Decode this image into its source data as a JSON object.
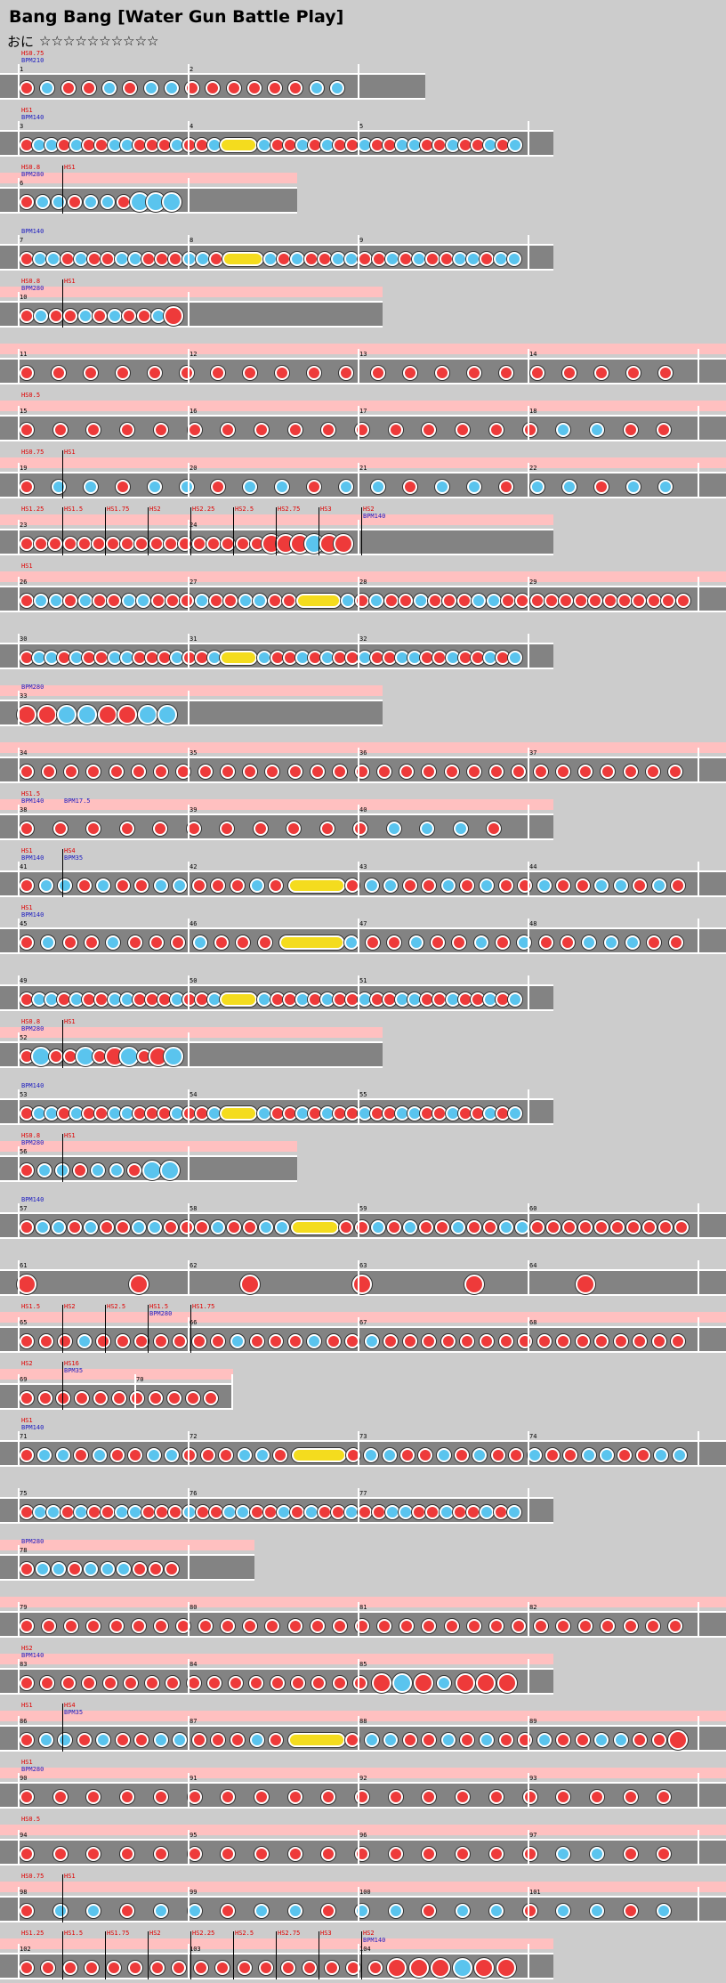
{
  "header": {
    "title": "Bang Bang [Water Gun Battle Play]",
    "difficulty_mark": "おに",
    "stars": "☆☆☆☆☆☆☆☆☆☆"
  },
  "colors": {
    "don": "#ee3a3a",
    "ka": "#5ac4ee",
    "drumroll": "#f4dc1e",
    "gogo": "#ffc0c0",
    "lane": "#838383",
    "hs_text": "#e00000",
    "bpm_text": "#2020c0"
  },
  "rows": [
    {
      "measures": [
        "1",
        "2"
      ],
      "events": [
        "HS0.75",
        "BPM210"
      ],
      "gogo": false,
      "notes": "d k d d k d k k d d d d d d k k",
      "roll": false
    },
    {
      "measures": [
        "3",
        "4",
        "5"
      ],
      "events": [
        "HS1",
        "BPM140"
      ],
      "gogo": false,
      "notes": "d k k d k d d k k d d d k d d k k d d k d k d d k d d k k d d k d d k d k",
      "roll": true
    },
    {
      "measures": [
        "6"
      ],
      "events": [
        "HS0.8",
        "BPM280",
        "HS1"
      ],
      "gogo": true,
      "notes": "d k k d k k d K K K",
      "roll": false
    },
    {
      "measures": [
        "7",
        "8",
        "9"
      ],
      "events": [
        "BPM140"
      ],
      "gogo": false,
      "notes": "d k k d k d d k k d d d k k d k d k d d k k d d k d k d d k k d k k",
      "roll": true
    },
    {
      "measures": [
        "10"
      ],
      "events": [
        "HS0.8",
        "BPM280",
        "HS1"
      ],
      "gogo": true,
      "notes": "d k d d k d k d d k D",
      "roll": false
    },
    {
      "measures": [
        "11",
        "12",
        "13",
        "14"
      ],
      "events": [],
      "gogo": true,
      "notes": "d d d d d d d d d d d d d d d d d d d d d",
      "roll": false
    },
    {
      "measures": [
        "15",
        "16",
        "17",
        "18"
      ],
      "events": [
        "HS0.5"
      ],
      "gogo": true,
      "notes": "d d d d d d d d d d d d d d d d k k d d",
      "roll": false
    },
    {
      "measures": [
        "19",
        "20",
        "21",
        "22"
      ],
      "events": [
        "HS0.75",
        "HS1"
      ],
      "gogo": true,
      "notes": "d k k d k k d k k d k k d k k d k k d k k",
      "roll": false
    },
    {
      "measures": [
        "23",
        "24"
      ],
      "events": [
        "HS1.25",
        "HS1.5",
        "HS1.75",
        "HS2",
        "HS2.25",
        "HS2.5",
        "HS2.75",
        "HS3",
        "HS2",
        "BPM140"
      ],
      "gogo": true,
      "notes": "d d d d d d d d d d d d d d d d d D D D K D D",
      "roll": false
    },
    {
      "measures": [
        "26",
        "27",
        "28",
        "29"
      ],
      "events": [
        "HS1"
      ],
      "gogo": true,
      "notes": "d k k d k d d k k d d d k d d k k d d k d k d d k d d d k k d d d d d d d d d d d d d",
      "roll": true
    },
    {
      "measures": [
        "30",
        "31",
        "32"
      ],
      "events": [],
      "gogo": false,
      "notes": "d k k d k d d k k d d d k d d k k d d k d k d d k d d k k d d k d d k d k",
      "roll": true
    },
    {
      "measures": [
        "33"
      ],
      "events": [
        "BPM280"
      ],
      "gogo": true,
      "notes": "D D K K D D K K",
      "roll": false
    },
    {
      "measures": [
        "34",
        "35",
        "36",
        "37"
      ],
      "events": [],
      "gogo": true,
      "notes": "d d d d d d d d d d d d d d d d d d d d d d d d d d d d d d",
      "roll": false
    },
    {
      "measures": [
        "38",
        "39",
        "40"
      ],
      "events": [
        "HS1.5",
        "BPM140",
        "BPM17.5"
      ],
      "gogo": true,
      "notes": "d d d d d d d d d d d k k k d",
      "roll": false
    },
    {
      "measures": [
        "41",
        "42",
        "43",
        "44"
      ],
      "events": [
        "HS1",
        "BPM140",
        "HS4",
        "BPM35"
      ],
      "gogo": false,
      "notes": "d k k d k d d k k d d d k d d k k d d k d k d d k d d k k d k d",
      "roll": true
    },
    {
      "measures": [
        "45",
        "46",
        "47",
        "48"
      ],
      "events": [
        "HS1",
        "BPM140"
      ],
      "gogo": false,
      "notes": "d k d d k d d d k d d d k d d k d d k d k d d k k k d d",
      "roll": true
    },
    {
      "measures": [
        "49",
        "50",
        "51"
      ],
      "events": [],
      "gogo": false,
      "notes": "d k k d k d d k k d d d k d d k k d d k d k d d k d d k k d d k d d k d k",
      "roll": true
    },
    {
      "measures": [
        "52"
      ],
      "events": [
        "HS0.8",
        "BPM280",
        "HS1"
      ],
      "gogo": true,
      "notes": "d K d d K d D K d D K",
      "roll": false
    },
    {
      "measures": [
        "53",
        "54",
        "55"
      ],
      "events": [
        "BPM140"
      ],
      "gogo": false,
      "notes": "d k k d k d d k k d d d k d d k k d d k d k d d k d d k k d d k d d k d k",
      "roll": true
    },
    {
      "measures": [
        "56"
      ],
      "events": [
        "HS0.8",
        "BPM280",
        "HS1"
      ],
      "gogo": true,
      "notes": "d k k d k k d K K",
      "roll": false
    },
    {
      "measures": [
        "57",
        "58",
        "59",
        "60"
      ],
      "events": [
        "BPM140"
      ],
      "gogo": false,
      "notes": "d k k d k d d k k d d d k d d k k d d k d k d d k d d k k d d d d d d d d d d",
      "roll": true
    },
    {
      "measures": [
        "61",
        "62",
        "63",
        "64"
      ],
      "events": [],
      "gogo": false,
      "notes": "D D D D D D",
      "roll": false
    },
    {
      "measures": [
        "65",
        "66",
        "67",
        "68"
      ],
      "events": [
        "HS1.5",
        "HS2",
        "HS2.5",
        "HS1.5",
        "BPM280",
        "HS1.75"
      ],
      "gogo": true,
      "notes": "d d d k d d d d d d d k d d d k d d k d d d d d d d d d d d d d d d d",
      "roll": false
    },
    {
      "measures": [
        "69",
        "70"
      ],
      "events": [
        "HS2",
        "HS16",
        "BPM35"
      ],
      "gogo": true,
      "notes": "d d d d d d d d d d d",
      "roll": false
    },
    {
      "measures": [
        "71",
        "72",
        "73",
        "74"
      ],
      "events": [
        "HS1",
        "BPM140"
      ],
      "gogo": false,
      "notes": "d k k d k d d k k d d d k k d d k k d d k d k d d k d d k k d d k k",
      "roll": true
    },
    {
      "measures": [
        "75",
        "76",
        "77"
      ],
      "events": [],
      "gogo": false,
      "notes": "d k k d k d d k k d d d k d d k k d d k d k d d k d d k k d d k d d k d k",
      "roll": false
    },
    {
      "measures": [
        "78"
      ],
      "events": [
        "BPM280"
      ],
      "gogo": true,
      "notes": "d k k d k k k d d d",
      "roll": false
    },
    {
      "measures": [
        "79",
        "80",
        "81",
        "82"
      ],
      "events": [],
      "gogo": true,
      "notes": "d d d d d d d d d d d d d d d d d d d d d d d d d d d d d d",
      "roll": false
    },
    {
      "measures": [
        "83",
        "84",
        "85"
      ],
      "events": [
        "HS2",
        "BPM140"
      ],
      "gogo": true,
      "notes": "d d d d d d d d d d d d d d d d d D K D k D D D",
      "roll": false
    },
    {
      "measures": [
        "86",
        "87",
        "88",
        "89"
      ],
      "events": [
        "HS1",
        "HS4",
        "BPM35"
      ],
      "gogo": true,
      "notes": "d k k d k d d k k d d d k d d k k d d k d k d d k d d k k d d D",
      "roll": true
    },
    {
      "measures": [
        "90",
        "91",
        "92",
        "93"
      ],
      "events": [
        "HS1",
        "BPM280"
      ],
      "gogo": true,
      "notes": "d d d d d d d d d d d d d d d d d d d d",
      "roll": false
    },
    {
      "measures": [
        "94",
        "95",
        "96",
        "97"
      ],
      "events": [
        "HS0.5"
      ],
      "gogo": true,
      "notes": "d d d d d d d d d d d d d d d d k k d d",
      "roll": false
    },
    {
      "measures": [
        "98",
        "99",
        "100",
        "101"
      ],
      "events": [
        "HS0.75",
        "HS1"
      ],
      "gogo": true,
      "notes": "d k k d k k d k k d k k d k k d k k d k",
      "roll": false
    },
    {
      "measures": [
        "102",
        "103",
        "104"
      ],
      "events": [
        "HS1.25",
        "HS1.5",
        "HS1.75",
        "HS2",
        "HS2.25",
        "HS2.5",
        "HS2.75",
        "HS3",
        "HS2",
        "BPM140"
      ],
      "gogo": true,
      "notes": "d d d d d d d d d d d d d d d d d D D D K D D",
      "roll": false
    }
  ]
}
